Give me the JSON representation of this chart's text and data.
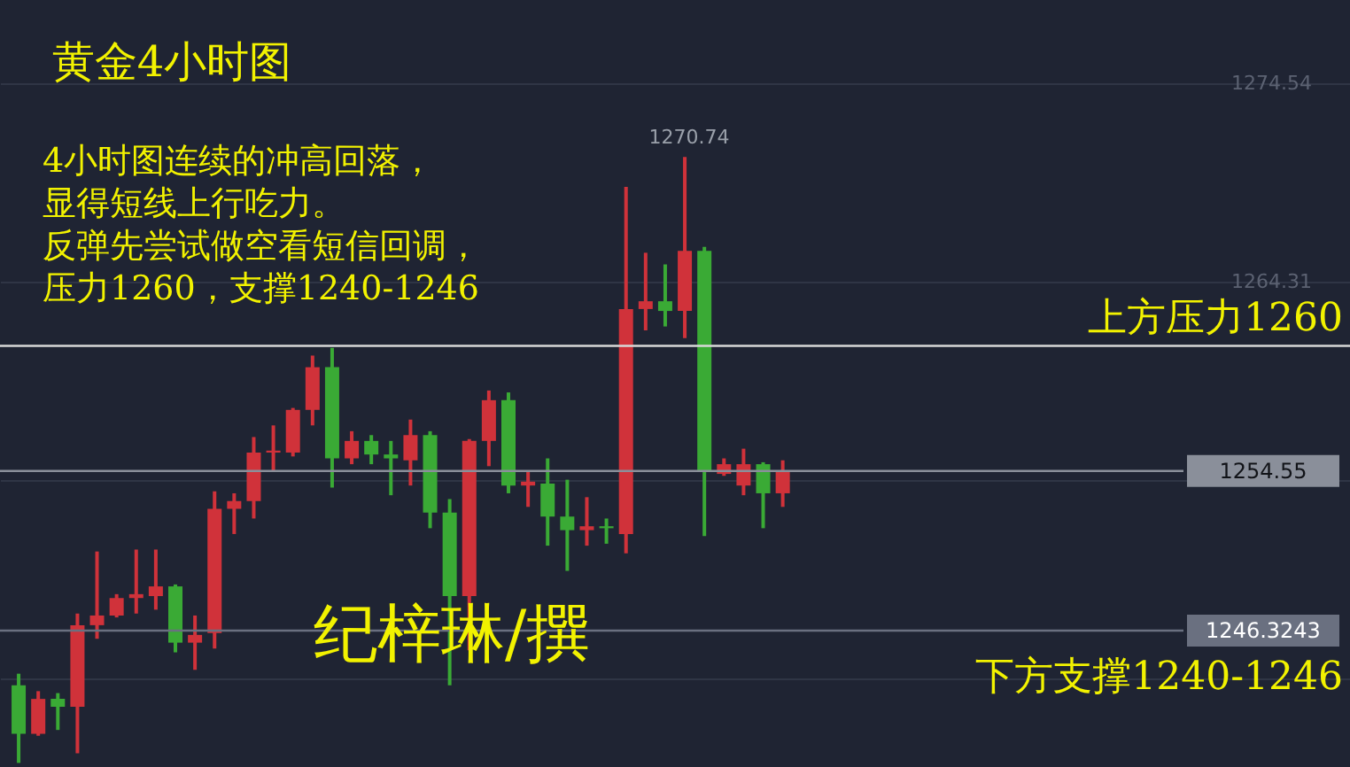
{
  "chart_data": {
    "type": "candlestick",
    "title": "黄金4小时图",
    "categories": [
      null,
      null,
      null,
      null,
      null,
      null,
      null,
      null,
      null,
      null,
      null,
      null,
      null,
      null,
      null,
      null,
      null,
      null,
      null,
      null,
      null,
      null,
      null,
      null,
      null,
      null,
      null,
      null,
      null,
      null,
      null,
      null,
      null,
      null,
      null,
      null,
      null,
      null,
      null,
      null,
      null,
      null,
      null,
      null,
      null,
      null,
      null,
      null,
      null,
      null,
      null,
      null,
      null,
      null,
      null,
      null,
      null,
      null,
      null,
      null,
      null,
      null,
      null,
      null,
      null,
      null,
      null,
      null
    ],
    "ohlc": [
      [
        1243.5,
        1244.1,
        1239.5,
        1241.0
      ],
      [
        1241.0,
        1243.2,
        1240.9,
        1242.8
      ],
      [
        1242.8,
        1243.1,
        1241.2,
        1242.4
      ],
      [
        1242.4,
        1247.2,
        1240.0,
        1246.6
      ],
      [
        1246.6,
        1250.4,
        1245.9,
        1247.1
      ],
      [
        1247.1,
        1248.2,
        1247.0,
        1248.0
      ],
      [
        1248.0,
        1250.5,
        1247.2,
        1248.2
      ],
      [
        1248.1,
        1250.5,
        1247.4,
        1248.6
      ],
      [
        1248.6,
        1248.7,
        1245.2,
        1245.7
      ],
      [
        1245.7,
        1247.1,
        1244.3,
        1246.1
      ],
      [
        1246.2,
        1253.5,
        1245.4,
        1252.6
      ],
      [
        1252.6,
        1253.4,
        1251.3,
        1253.0
      ],
      [
        1253.0,
        1256.3,
        1252.1,
        1255.5
      ],
      [
        1255.5,
        1256.9,
        1254.5,
        1255.6
      ],
      [
        1255.5,
        1257.8,
        1255.3,
        1257.7
      ],
      [
        1257.7,
        1260.5,
        1256.9,
        1259.9
      ],
      [
        1259.9,
        1260.9,
        1253.7,
        1255.2
      ],
      [
        1255.2,
        1256.6,
        1254.9,
        1256.1
      ],
      [
        1256.1,
        1256.4,
        1254.9,
        1255.4
      ],
      [
        1255.4,
        1256.1,
        1253.3,
        1255.2
      ],
      [
        1255.1,
        1257.2,
        1253.8,
        1256.4
      ],
      [
        1256.4,
        1256.6,
        1251.6,
        1252.4
      ],
      [
        1252.4,
        1253.1,
        1243.5,
        1248.1
      ],
      [
        1248.1,
        1256.2,
        1245.3,
        1256.1
      ],
      [
        1256.1,
        1258.7,
        1254.8,
        1258.2
      ],
      [
        1258.2,
        1258.6,
        1253.4,
        1253.8
      ],
      [
        1253.8,
        1254.5,
        1252.7,
        1254.0
      ],
      [
        1253.9,
        1255.2,
        1250.7,
        1252.2
      ],
      [
        1252.2,
        1254.1,
        1249.4,
        1251.5
      ],
      [
        1251.5,
        1253.2,
        1250.7,
        1251.7
      ],
      [
        1251.7,
        1252.1,
        1250.8,
        1251.6
      ],
      [
        1251.3,
        1269.2,
        1250.3,
        1262.9
      ],
      [
        1262.9,
        1265.8,
        1261.8,
        1263.3
      ],
      [
        1263.3,
        1265.2,
        1262.0,
        1262.8
      ],
      [
        1262.8,
        1270.74,
        1261.4,
        1265.9
      ],
      [
        1265.9,
        1266.1,
        1251.2,
        1254.5
      ],
      [
        1254.4,
        1255.2,
        1254.3,
        1254.9
      ],
      [
        1253.8,
        1255.7,
        1253.3,
        1254.9
      ],
      [
        1254.9,
        1255.0,
        1251.6,
        1253.4
      ],
      [
        1253.4,
        1255.1,
        1252.7,
        1254.5
      ],
      null,
      null,
      null,
      null,
      null,
      null,
      null,
      null,
      null,
      null,
      null,
      null,
      null,
      null,
      null,
      null,
      null,
      null,
      null,
      null,
      null,
      null,
      null,
      null,
      null,
      null,
      null,
      null
    ],
    "colors": [
      "#3aaa35",
      "#d0323a",
      "#3aaa35",
      "#d0323a",
      "#d0323a",
      "#d0323a",
      "#d0323a",
      "#d0323a",
      "#3aaa35",
      "#d0323a",
      "#d0323a",
      "#d0323a",
      "#d0323a",
      "#d0323a",
      "#d0323a",
      "#d0323a",
      "#3aaa35",
      "#d0323a",
      "#3aaa35",
      "#3aaa35",
      "#d0323a",
      "#3aaa35",
      "#3aaa35",
      "#d0323a",
      "#d0323a",
      "#3aaa35",
      "#d0323a",
      "#3aaa35",
      "#3aaa35",
      "#d0323a",
      "#3aaa35",
      "#d0323a",
      "#d0323a",
      "#3aaa35",
      "#d0323a",
      "#3aaa35",
      "#d0323a",
      "#d0323a",
      "#3aaa35",
      "#d0323a",
      null,
      null,
      null,
      null,
      null,
      null,
      null,
      null,
      null,
      null,
      null,
      null,
      null,
      null,
      null,
      null,
      null,
      null,
      null,
      null,
      null,
      null,
      null,
      null,
      null,
      null,
      null,
      null
    ],
    "ylim": [
      1239.29,
      1278.83
    ],
    "yticks": [
      1274.54,
      1264.31,
      {
        "value": 1254.09,
        "label": null
      },
      {
        "value": 1243.86,
        "label": null
      }
    ],
    "grid": "y",
    "ref_lines": [
      {
        "axis": "y",
        "value": 1261,
        "label": "上方压力1260",
        "color": "#d8d8d8"
      },
      {
        "axis": "y",
        "value": 1254.55,
        "label": "1254.55",
        "color": "#8a8f9a"
      },
      {
        "axis": "y",
        "value": 1246.3243,
        "label": "1246.3243",
        "color": "#6a7080"
      }
    ],
    "annotations": [
      "4小时图连续的冲高回落，",
      "显得短线上行吃力。",
      "反弹先尝试做空看短信回调，",
      "压力1260，支撑1240-1246",
      "纪梓琳/撰",
      "下方支撑1240-1246",
      "1270.74"
    ]
  }
}
